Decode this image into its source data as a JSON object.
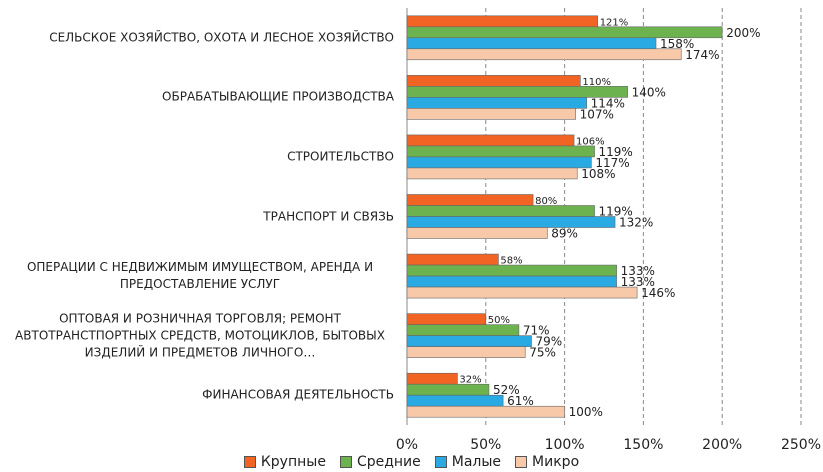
{
  "chart_data": {
    "type": "hbar",
    "categories": [
      "СЕЛЬСКОЕ ХОЗЯЙСТВО, ОХОТА И ЛЕСНОЕ ХОЗЯЙСТВО",
      "ОБРАБАТЫВАЮЩИЕ ПРОИЗВОДСТВА",
      "СТРОИТЕЛЬСТВО",
      "ТРАНСПОРТ И СВЯЗЬ",
      "ОПЕРАЦИИ С НЕДВИЖИМЫМ ИМУЩЕСТВОМ, АРЕНДА И ПРЕДОСТАВЛЕНИЕ УСЛУГ",
      "ОПТОВАЯ И РОЗНИЧНАЯ ТОРГОВЛЯ; РЕМОНТ АВТОТРАНСТПОРТНЫХ СРЕДСТВ, МОТОЦИКЛОВ, БЫТОВЫХ ИЗДЕЛИЙ И ПРЕДМЕТОВ ЛИЧНОГО…",
      "ФИНАНСОВАЯ ДЕЯТЕЛЬНОСТЬ"
    ],
    "series": [
      {
        "name": "Крупные",
        "color": "#f26424",
        "values": [
          121,
          110,
          106,
          80,
          58,
          50,
          32
        ],
        "value_labels": [
          "121%",
          "110%",
          "106%",
          "80%",
          "58%",
          "50%",
          "32%"
        ]
      },
      {
        "name": "Средние",
        "color": "#6cb24e",
        "values": [
          200,
          140,
          119,
          119,
          133,
          71,
          52
        ],
        "value_labels": [
          "200%",
          "140%",
          "119%",
          "119%",
          "133%",
          "71%",
          "52%"
        ]
      },
      {
        "name": "Малые",
        "color": "#2aaae2",
        "values": [
          158,
          114,
          117,
          132,
          133,
          79,
          61
        ],
        "value_labels": [
          "158%",
          "114%",
          "117%",
          "132%",
          "133%",
          "79%",
          "61%"
        ]
      },
      {
        "name": "Микро",
        "color": "#f8c9a9",
        "values": [
          174,
          107,
          108,
          89,
          146,
          75,
          100
        ],
        "value_labels": [
          "174%",
          "107%",
          "108%",
          "89%",
          "146%",
          "75%",
          "100%"
        ]
      }
    ],
    "xlim": [
      0,
      250
    ],
    "xticks": [
      {
        "value": 0,
        "label": "0%"
      },
      {
        "value": 50,
        "label": "50%"
      },
      {
        "value": 100,
        "label": "100%"
      },
      {
        "value": 150,
        "label": "150%"
      },
      {
        "value": 200,
        "label": "200%"
      },
      {
        "value": 250,
        "label": "250%"
      }
    ],
    "grid": true,
    "legend": "bottom"
  }
}
